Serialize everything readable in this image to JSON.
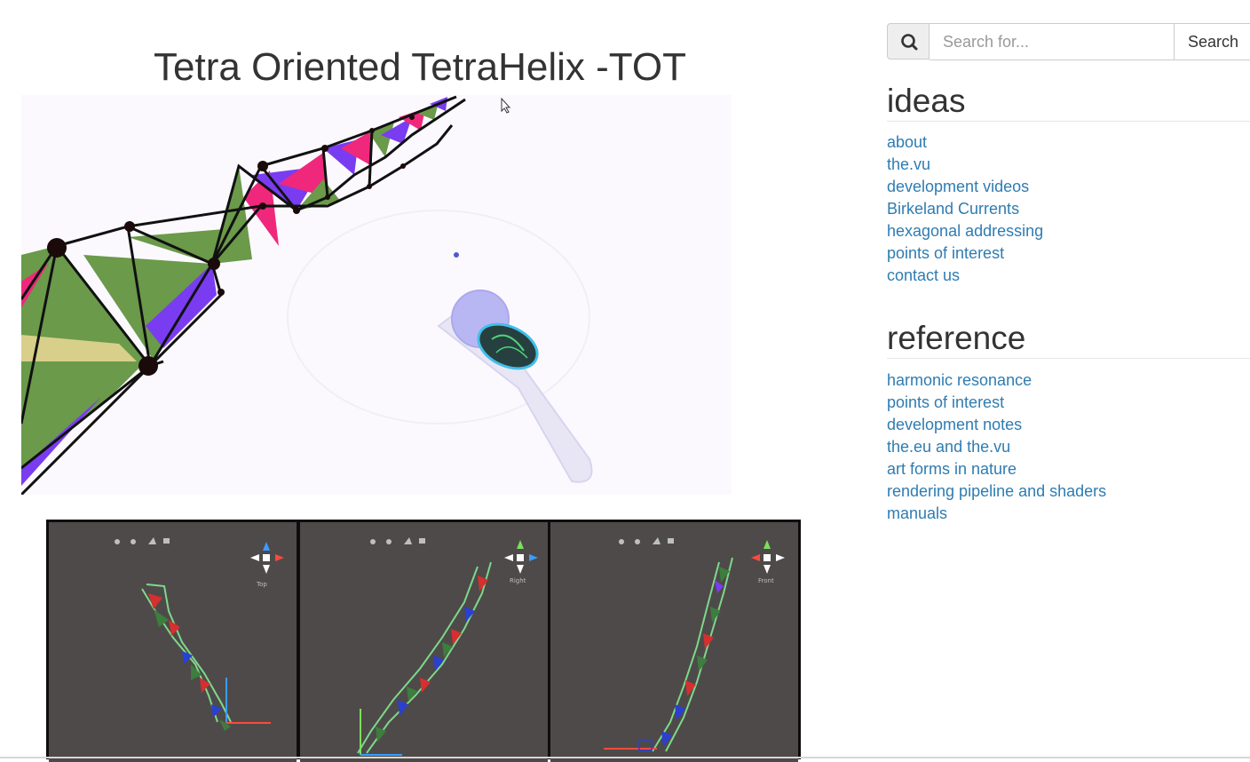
{
  "main": {
    "title": "Tetra Oriented TetraHelix -TOT",
    "panels": [
      {
        "view_label": "Top"
      },
      {
        "view_label": "Right"
      },
      {
        "view_label": "Front"
      }
    ]
  },
  "search": {
    "placeholder": "Search for...",
    "button_label": "Search",
    "icon": "search-icon"
  },
  "sidebar": {
    "sections": [
      {
        "heading": "ideas",
        "links": [
          "about",
          "the.vu",
          "development videos",
          "Birkeland Currents",
          "hexagonal addressing",
          "points of interest",
          "contact us"
        ]
      },
      {
        "heading": "reference",
        "links": [
          "harmonic resonance",
          "points of interest",
          "development notes",
          "the.eu and the.vu",
          "art forms in nature",
          "rendering pipeline and shaders",
          "manuals"
        ]
      }
    ]
  },
  "colors": {
    "link": "#2e7cb2",
    "heading": "#333333",
    "green_face": "#6a9a4a",
    "pink_face": "#f0287c",
    "purple_face": "#7a3cf0",
    "panel_bg": "#4e4a4a"
  }
}
